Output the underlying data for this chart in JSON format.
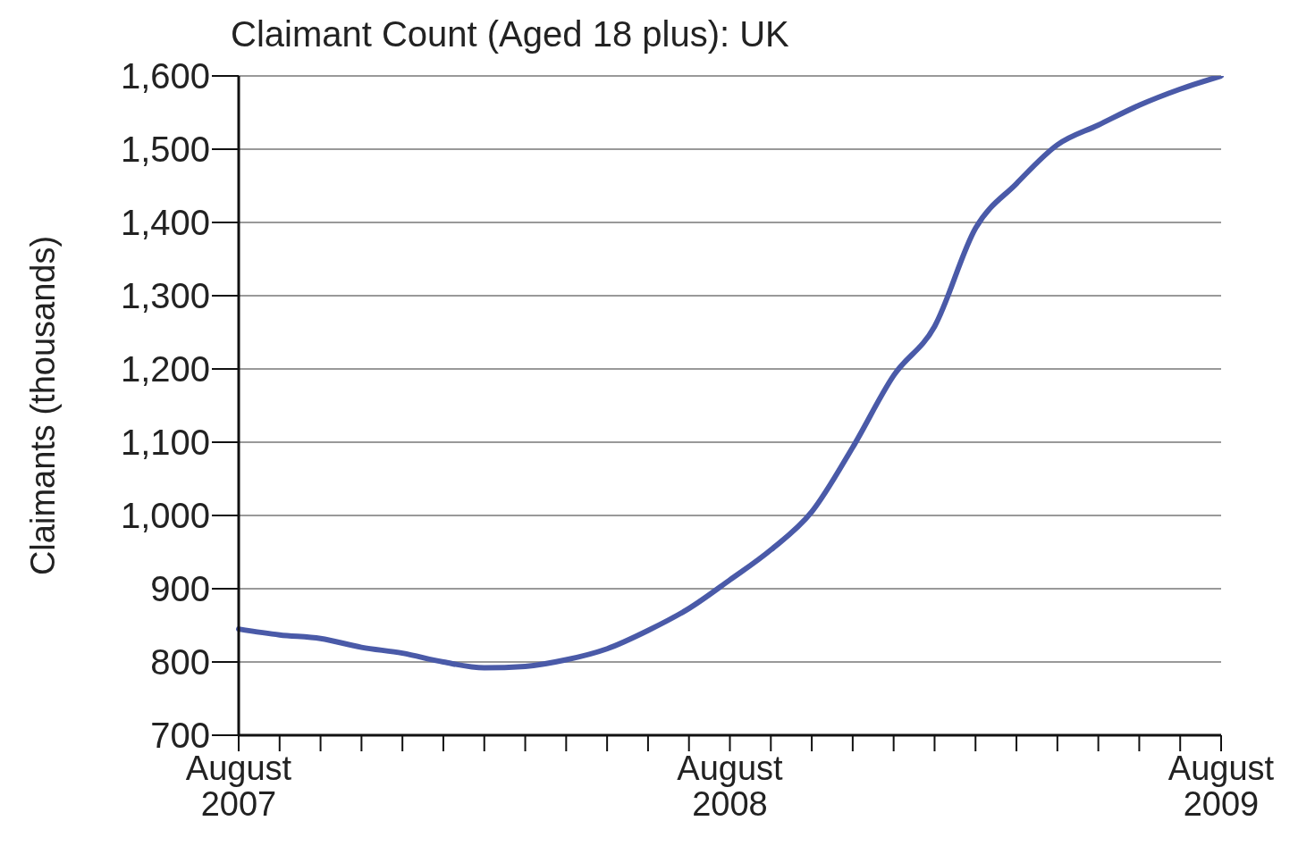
{
  "chart_data": {
    "type": "line",
    "title": "Claimant Count (Aged 18 plus): UK",
    "ylabel": "Claimants (thousands)",
    "categories": [
      "August 2007",
      null,
      null,
      null,
      null,
      null,
      null,
      null,
      null,
      null,
      null,
      null,
      "August 2008",
      null,
      null,
      null,
      null,
      null,
      null,
      null,
      null,
      null,
      null,
      null,
      "August 2009"
    ],
    "series": [
      {
        "color": "#4a5aa8",
        "values": [
          845,
          837,
          832,
          820,
          812,
          800,
          792,
          794,
          803,
          818,
          843,
          873,
          912,
          953,
          1005,
          1093,
          1191,
          1258,
          1392,
          1453,
          1506,
          1533,
          1560,
          1582,
          1600
        ]
      }
    ],
    "ylim": [
      700,
      1600
    ],
    "yticks": [
      700,
      800,
      900,
      {
        "value": 1000,
        "label": "1,000"
      },
      {
        "value": 1100,
        "label": "1,100"
      },
      {
        "value": 1200,
        "label": "1,200"
      },
      {
        "value": 1300,
        "label": "1,300"
      },
      {
        "value": 1400,
        "label": "1,400"
      },
      {
        "value": 1500,
        "label": "1,500"
      },
      {
        "value": 1600,
        "label": "1,600"
      }
    ],
    "grid": "y",
    "marker": "none",
    "line_style": "solid",
    "legend": false
  }
}
